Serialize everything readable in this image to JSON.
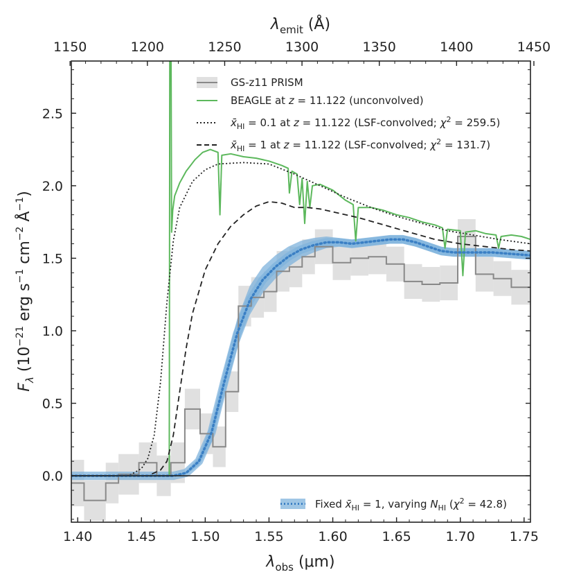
{
  "chart_data": {
    "type": "line",
    "xlabel_bottom": "λobs (μm)",
    "xlabel_top": "λemit (Å)",
    "ylabel": "Fλ (10⁻²¹ erg s⁻¹ cm⁻² Å⁻¹)",
    "xlim": [
      1.395,
      1.755
    ],
    "ylim": [
      -0.32,
      2.86
    ],
    "x_ticks": [
      1.4,
      1.45,
      1.5,
      1.55,
      1.6,
      1.65,
      1.7,
      1.75
    ],
    "x_tick_labels": [
      "1.40",
      "1.45",
      "1.50",
      "1.55",
      "1.60",
      "1.65",
      "1.70",
      "1.75"
    ],
    "y_ticks": [
      0.0,
      0.5,
      1.0,
      1.5,
      2.0,
      2.5
    ],
    "y_tick_labels": [
      "0.0",
      "0.5",
      "1.0",
      "1.5",
      "2.0",
      "2.5"
    ],
    "top_ticks": [
      1150,
      1200,
      1250,
      1300,
      1350,
      1400,
      1450
    ],
    "top_tick_labels": [
      "1150",
      "1200",
      "1250",
      "1300",
      "1350",
      "1400",
      "1450"
    ],
    "redshift": 11.122,
    "legend_top": [
      {
        "label": "GS-z11 PRISM",
        "style": "data"
      },
      {
        "label": "BEAGLE at z = 11.122 (unconvolved)",
        "style": "beagle"
      },
      {
        "label": "x̄HI = 0.1 at z = 11.122 (LSF-convolved; χ² = 259.5)",
        "style": "dotted"
      },
      {
        "label": "x̄HI = 1 at z = 11.122 (LSF-convolved; χ² = 131.7)",
        "style": "dashed"
      }
    ],
    "legend_bottom": [
      {
        "label": "Fixed x̄HI = 1, varying NHI (χ² = 42.8)",
        "style": "fit"
      }
    ],
    "colors": {
      "data": "#888888",
      "data_err": "#e0e0e0",
      "beagle": "#5cb85c",
      "dotted": "#222222",
      "dashed": "#222222",
      "fit_band": "#7fb3dc",
      "fit_line": "#3a7fc4"
    },
    "series": [
      {
        "name": "GS-z11 PRISM",
        "type": "step",
        "x_edges": [
          1.395,
          1.405,
          1.422,
          1.432,
          1.448,
          1.462,
          1.473,
          1.484,
          1.496,
          1.506,
          1.516,
          1.526,
          1.536,
          1.546,
          1.556,
          1.566,
          1.576,
          1.586,
          1.6,
          1.614,
          1.628,
          1.642,
          1.656,
          1.67,
          1.684,
          1.698,
          1.712,
          1.726,
          1.74,
          1.755
        ],
        "values": [
          -0.05,
          -0.17,
          -0.05,
          0.01,
          0.09,
          0.0,
          0.09,
          0.46,
          0.29,
          0.2,
          0.58,
          1.17,
          1.23,
          1.27,
          1.41,
          1.44,
          1.51,
          1.58,
          1.47,
          1.5,
          1.51,
          1.46,
          1.34,
          1.32,
          1.33,
          1.65,
          1.39,
          1.36,
          1.3
        ],
        "errors": [
          0.16,
          0.14,
          0.14,
          0.14,
          0.14,
          0.14,
          0.14,
          0.14,
          0.14,
          0.14,
          0.14,
          0.14,
          0.14,
          0.14,
          0.14,
          0.14,
          0.12,
          0.12,
          0.12,
          0.12,
          0.12,
          0.12,
          0.12,
          0.12,
          0.12,
          0.12,
          0.12,
          0.12,
          0.12
        ]
      },
      {
        "name": "BEAGLE at z = 11.122 (unconvolved)",
        "type": "line",
        "points": [
          [
            1.395,
            0.0
          ],
          [
            1.4718,
            0.0
          ],
          [
            1.4722,
            2.95
          ],
          [
            1.4732,
            2.95
          ],
          [
            1.4736,
            1.68
          ],
          [
            1.4745,
            1.83
          ],
          [
            1.476,
            1.93
          ],
          [
            1.48,
            2.02
          ],
          [
            1.485,
            2.1
          ],
          [
            1.492,
            2.18
          ],
          [
            1.498,
            2.23
          ],
          [
            1.504,
            2.25
          ],
          [
            1.51,
            2.23
          ],
          [
            1.5115,
            1.8
          ],
          [
            1.513,
            2.21
          ],
          [
            1.52,
            2.22
          ],
          [
            1.53,
            2.2
          ],
          [
            1.54,
            2.19
          ],
          [
            1.55,
            2.17
          ],
          [
            1.56,
            2.14
          ],
          [
            1.565,
            2.12
          ],
          [
            1.566,
            1.95
          ],
          [
            1.568,
            2.1
          ],
          [
            1.572,
            2.08
          ],
          [
            1.574,
            1.87
          ],
          [
            1.576,
            2.05
          ],
          [
            1.578,
            1.74
          ],
          [
            1.58,
            2.03
          ],
          [
            1.582,
            1.85
          ],
          [
            1.584,
            2.0
          ],
          [
            1.59,
            2.01
          ],
          [
            1.6,
            1.97
          ],
          [
            1.61,
            1.9
          ],
          [
            1.616,
            1.87
          ],
          [
            1.618,
            1.62
          ],
          [
            1.62,
            1.85
          ],
          [
            1.63,
            1.85
          ],
          [
            1.64,
            1.83
          ],
          [
            1.65,
            1.8
          ],
          [
            1.66,
            1.78
          ],
          [
            1.67,
            1.75
          ],
          [
            1.68,
            1.73
          ],
          [
            1.686,
            1.71
          ],
          [
            1.688,
            1.57
          ],
          [
            1.69,
            1.7
          ],
          [
            1.7,
            1.69
          ],
          [
            1.702,
            1.38
          ],
          [
            1.704,
            1.68
          ],
          [
            1.712,
            1.69
          ],
          [
            1.72,
            1.67
          ],
          [
            1.728,
            1.66
          ],
          [
            1.73,
            1.57
          ],
          [
            1.732,
            1.65
          ],
          [
            1.74,
            1.66
          ],
          [
            1.748,
            1.65
          ],
          [
            1.755,
            1.63
          ]
        ]
      },
      {
        "name": "x̄HI = 0.1 (LSF-convolved)",
        "type": "line",
        "points": [
          [
            1.395,
            0.0
          ],
          [
            1.44,
            0.0
          ],
          [
            1.45,
            0.05
          ],
          [
            1.455,
            0.12
          ],
          [
            1.46,
            0.28
          ],
          [
            1.465,
            0.65
          ],
          [
            1.47,
            1.2
          ],
          [
            1.475,
            1.62
          ],
          [
            1.48,
            1.85
          ],
          [
            1.49,
            2.03
          ],
          [
            1.5,
            2.11
          ],
          [
            1.51,
            2.15
          ],
          [
            1.53,
            2.16
          ],
          [
            1.55,
            2.15
          ],
          [
            1.57,
            2.08
          ],
          [
            1.59,
            2.0
          ],
          [
            1.61,
            1.92
          ],
          [
            1.63,
            1.85
          ],
          [
            1.65,
            1.79
          ],
          [
            1.67,
            1.74
          ],
          [
            1.69,
            1.69
          ],
          [
            1.71,
            1.66
          ],
          [
            1.73,
            1.63
          ],
          [
            1.755,
            1.6
          ]
        ]
      },
      {
        "name": "x̄HI = 1 (LSF-convolved)",
        "type": "line",
        "points": [
          [
            1.395,
            0.0
          ],
          [
            1.455,
            0.0
          ],
          [
            1.465,
            0.04
          ],
          [
            1.47,
            0.1
          ],
          [
            1.475,
            0.28
          ],
          [
            1.48,
            0.58
          ],
          [
            1.485,
            0.88
          ],
          [
            1.49,
            1.12
          ],
          [
            1.5,
            1.42
          ],
          [
            1.51,
            1.6
          ],
          [
            1.52,
            1.72
          ],
          [
            1.53,
            1.8
          ],
          [
            1.54,
            1.86
          ],
          [
            1.55,
            1.89
          ],
          [
            1.56,
            1.88
          ],
          [
            1.57,
            1.85
          ],
          [
            1.58,
            1.85
          ],
          [
            1.59,
            1.84
          ],
          [
            1.6,
            1.82
          ],
          [
            1.62,
            1.78
          ],
          [
            1.64,
            1.73
          ],
          [
            1.66,
            1.68
          ],
          [
            1.68,
            1.63
          ],
          [
            1.7,
            1.6
          ],
          [
            1.72,
            1.58
          ],
          [
            1.74,
            1.56
          ],
          [
            1.755,
            1.55
          ]
        ]
      },
      {
        "name": "Fixed x̄HI = 1, varying NHI",
        "type": "band",
        "points": [
          [
            1.395,
            0.0
          ],
          [
            1.465,
            0.0
          ],
          [
            1.475,
            0.0
          ],
          [
            1.485,
            0.02
          ],
          [
            1.495,
            0.1
          ],
          [
            1.505,
            0.3
          ],
          [
            1.515,
            0.65
          ],
          [
            1.525,
            0.98
          ],
          [
            1.535,
            1.21
          ],
          [
            1.545,
            1.35
          ],
          [
            1.555,
            1.44
          ],
          [
            1.565,
            1.51
          ],
          [
            1.575,
            1.56
          ],
          [
            1.585,
            1.59
          ],
          [
            1.595,
            1.61
          ],
          [
            1.605,
            1.61
          ],
          [
            1.615,
            1.6
          ],
          [
            1.625,
            1.61
          ],
          [
            1.635,
            1.62
          ],
          [
            1.645,
            1.63
          ],
          [
            1.655,
            1.63
          ],
          [
            1.665,
            1.61
          ],
          [
            1.675,
            1.58
          ],
          [
            1.685,
            1.55
          ],
          [
            1.695,
            1.54
          ],
          [
            1.705,
            1.54
          ],
          [
            1.715,
            1.54
          ],
          [
            1.725,
            1.54
          ],
          [
            1.74,
            1.53
          ],
          [
            1.755,
            1.52
          ]
        ],
        "band_halfwidth": [
          0.0,
          0.0,
          0.0,
          0.01,
          0.03,
          0.07,
          0.09,
          0.1,
          0.1,
          0.09,
          0.08,
          0.07,
          0.06,
          0.05,
          0.04,
          0.03,
          0.03,
          0.03,
          0.03,
          0.03,
          0.03,
          0.03,
          0.03,
          0.03,
          0.03,
          0.03,
          0.03,
          0.03,
          0.03,
          0.03
        ]
      }
    ]
  }
}
